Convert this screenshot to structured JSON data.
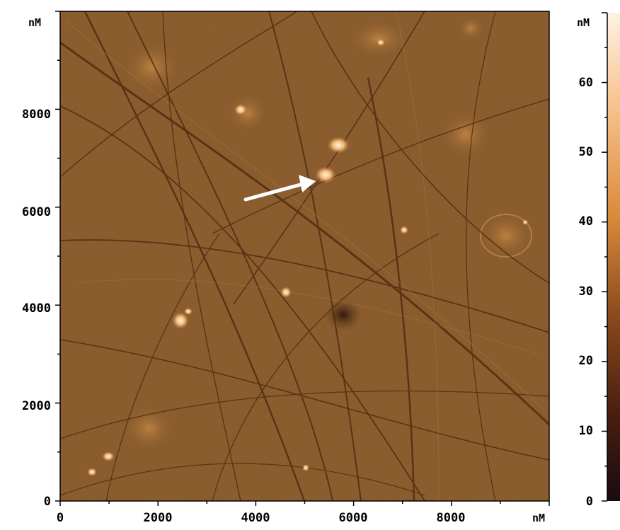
{
  "image": {
    "x_axis": {
      "unit": "nM",
      "ticks": [
        {
          "value": 0,
          "label": "0"
        },
        {
          "value": 2000,
          "label": "2000"
        },
        {
          "value": 4000,
          "label": "4000"
        },
        {
          "value": 6000,
          "label": "6000"
        },
        {
          "value": 8000,
          "label": "8000"
        }
      ],
      "range": [
        0,
        10000
      ]
    },
    "y_axis": {
      "unit": "nM",
      "ticks": [
        {
          "value": 0,
          "label": "0"
        },
        {
          "value": 2000,
          "label": "2000"
        },
        {
          "value": 4000,
          "label": "4000"
        },
        {
          "value": 6000,
          "label": "6000"
        },
        {
          "value": 8000,
          "label": "8000"
        }
      ],
      "range": [
        0,
        10000
      ]
    },
    "colorbar": {
      "unit": "nM",
      "range": [
        0,
        70
      ],
      "ticks": [
        {
          "value": 0,
          "label": "0"
        },
        {
          "value": 10,
          "label": "10"
        },
        {
          "value": 20,
          "label": "20"
        },
        {
          "value": 30,
          "label": "30"
        },
        {
          "value": 40,
          "label": "40"
        },
        {
          "value": 50,
          "label": "50"
        },
        {
          "value": 60,
          "label": "60"
        }
      ],
      "colors": [
        "#1a0a10",
        "#4a1e10",
        "#8a4a1c",
        "#d88a3a",
        "#f6c08a",
        "#fff2e4"
      ]
    },
    "colormap": {
      "base": "#8a5a2a",
      "dark": "#3a1e10",
      "bright": "#fff4e0"
    },
    "arrow_color": "#ffffff"
  }
}
